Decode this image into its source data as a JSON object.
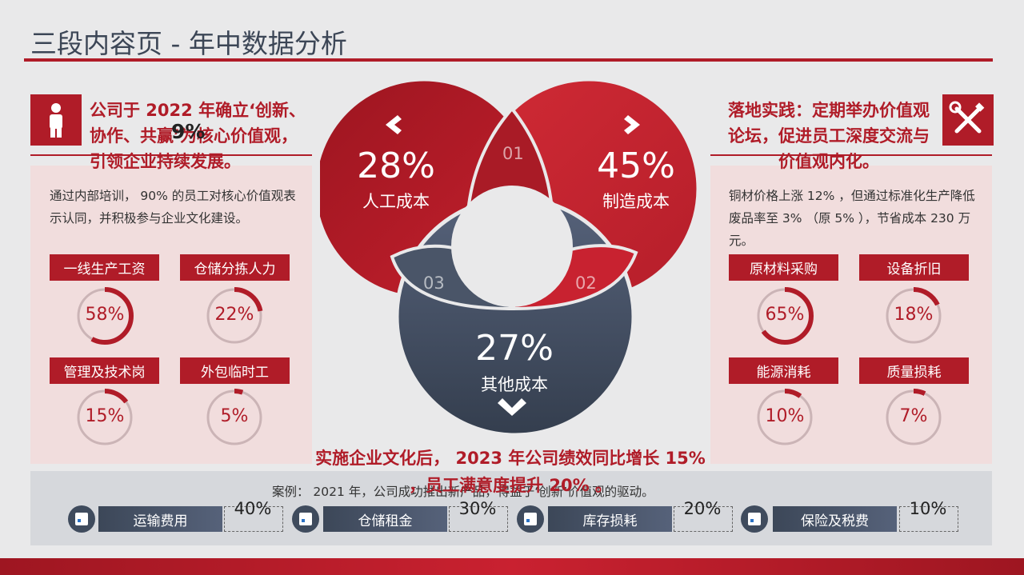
{
  "title": "三段内容页 - 年中数据分析",
  "left": {
    "heading": "公司于 2022 年确立‘创新、协作、共赢’为核心价值观，引领企业持续发展。",
    "overlap_label": "9%",
    "body": "通过内部培训， 90% 的员工对核心价值观表示认同，并积极参与企业文化建设。",
    "items": [
      {
        "label": "一线生产工资",
        "pct_text": "58%",
        "value": 58
      },
      {
        "label": "仓储分拣人力",
        "pct_text": "22%",
        "value": 22
      },
      {
        "label": "管理及技术岗",
        "pct_text": "15%",
        "value": 15
      },
      {
        "label": "外包临时工",
        "pct_text": "5%",
        "value": 5
      }
    ]
  },
  "right": {
    "heading": "落地实践：定期举办价值观论坛，促进员工深度交流与价值观内化。",
    "body": "铜材价格上涨 12% ，但通过标准化生产降低废品率至 3% （原 5% ），节省成本 230 万元。",
    "items": [
      {
        "label": "原材料采购",
        "pct_text": "65%",
        "value": 65
      },
      {
        "label": "设备折旧",
        "pct_text": "18%",
        "value": 18
      },
      {
        "label": "能源消耗",
        "pct_text": "10%",
        "value": 10
      },
      {
        "label": "质量损耗",
        "pct_text": "7%",
        "value": 7
      }
    ]
  },
  "venn": {
    "circle1": {
      "pct": "28%",
      "label": "人工成本"
    },
    "circle2": {
      "pct": "45%",
      "label": "制造成本"
    },
    "circle3": {
      "pct": "27%",
      "label": "其他成本"
    },
    "n01": "01",
    "n02": "02",
    "n03": "03"
  },
  "overlay_text": "实施企业文化后， 2023 年公司绩效同比增长 15% ，员工满意度提升 20% 。",
  "case_text": "案例： 2021 年，公司成功推出新产品，得益于‘创新’价值观的驱动。",
  "footer": [
    {
      "label": "运输费用",
      "value": "40%"
    },
    {
      "label": "仓储租金",
      "value": "30%"
    },
    {
      "label": "库存损耗",
      "value": "20%"
    },
    {
      "label": "保险及税费",
      "value": "10%"
    }
  ],
  "colors": {
    "accent": "#b01c28",
    "dark": "#3c4758",
    "panel": "#f1dddd"
  },
  "icons": {
    "left": "person-icon",
    "right": "tools-icon"
  }
}
